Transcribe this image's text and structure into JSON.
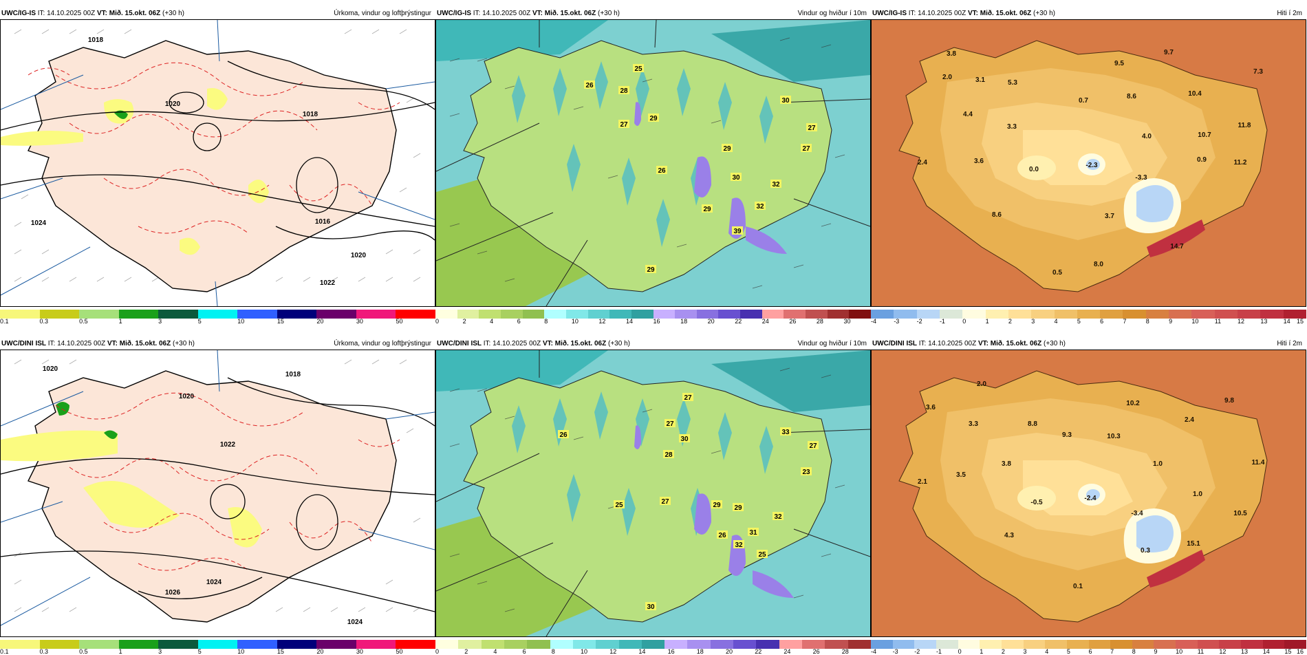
{
  "rows": [
    {
      "model": "UWC/IG-IS",
      "panels": [
        {
          "kind": "precip",
          "model": "UWC/IG-IS",
          "it": "IT: 14.10.2025 00Z",
          "vt_label": "VT:",
          "vt": "Mið. 15.okt. 06Z",
          "lead": "(+30 h)",
          "title": "Úrkoma, vindur og loftþrýstingur",
          "labels": [
            {
              "text": "1024"
            },
            {
              "text": "1020"
            },
            {
              "text": "1018"
            },
            {
              "text": "1016"
            },
            {
              "text": "1020"
            },
            {
              "text": "1022"
            },
            {
              "text": "1018"
            }
          ]
        },
        {
          "kind": "wind",
          "model": "UWC/IG-IS",
          "it": "IT: 14.10.2025 00Z",
          "vt_label": "VT:",
          "vt": "Mið. 15.okt. 06Z",
          "lead": "(+30 h)",
          "title": "Vindur og hviður í 10m",
          "labels": [
            {
              "text": "25"
            },
            {
              "text": "26"
            },
            {
              "text": "28"
            },
            {
              "text": "27"
            },
            {
              "text": "29"
            },
            {
              "text": "30"
            },
            {
              "text": "27"
            },
            {
              "text": "27"
            },
            {
              "text": "29"
            },
            {
              "text": "26"
            },
            {
              "text": "30"
            },
            {
              "text": "32"
            },
            {
              "text": "29"
            },
            {
              "text": "32"
            },
            {
              "text": "39"
            },
            {
              "text": "29"
            }
          ]
        },
        {
          "kind": "temp",
          "model": "UWC/IG-IS",
          "it": "IT: 14.10.2025 00Z",
          "vt_label": "VT:",
          "vt": "Mið. 15.okt. 06Z",
          "lead": "(+30 h)",
          "title": "Hiti í 2m",
          "labels": [
            {
              "text": "3.8"
            },
            {
              "text": "2.0"
            },
            {
              "text": "3.1"
            },
            {
              "text": "5.3"
            },
            {
              "text": "9.5"
            },
            {
              "text": "9.7"
            },
            {
              "text": "7.3"
            },
            {
              "text": "0.7"
            },
            {
              "text": "8.6"
            },
            {
              "text": "10.4"
            },
            {
              "text": "4.4"
            },
            {
              "text": "3.3"
            },
            {
              "text": "4.0"
            },
            {
              "text": "10.7"
            },
            {
              "text": "11.8"
            },
            {
              "text": "2.4"
            },
            {
              "text": "3.6"
            },
            {
              "text": "0.0"
            },
            {
              "text": "-2.3"
            },
            {
              "text": "-3.3"
            },
            {
              "text": "0.9"
            },
            {
              "text": "11.2"
            },
            {
              "text": "8.6"
            },
            {
              "text": "3.7"
            },
            {
              "text": "14.7"
            },
            {
              "text": "0.5"
            },
            {
              "text": "8.0"
            }
          ]
        }
      ]
    },
    {
      "model": "UWC/DINI ISL",
      "panels": [
        {
          "kind": "precip",
          "model": "UWC/DINI ISL",
          "it": "IT: 14.10.2025 00Z",
          "vt_label": "VT:",
          "vt": "Mið. 15.okt. 06Z",
          "lead": "(+30 h)",
          "title": "Úrkoma, vindur og loftþrýstingur",
          "labels": [
            {
              "text": "1020"
            },
            {
              "text": "1018"
            },
            {
              "text": "1020"
            },
            {
              "text": "1022"
            },
            {
              "text": "1024"
            },
            {
              "text": "1026"
            },
            {
              "text": "1024"
            }
          ]
        },
        {
          "kind": "wind",
          "model": "UWC/DINI ISL",
          "it": "IT: 14.10.2025 00Z",
          "vt_label": "VT:",
          "vt": "Mið. 15.okt. 06Z",
          "lead": "(+30 h)",
          "title": "Vindur og hviður í 10m",
          "labels": [
            {
              "text": "27"
            },
            {
              "text": "26"
            },
            {
              "text": "27"
            },
            {
              "text": "30"
            },
            {
              "text": "28"
            },
            {
              "text": "33"
            },
            {
              "text": "27"
            },
            {
              "text": "23"
            },
            {
              "text": "25"
            },
            {
              "text": "27"
            },
            {
              "text": "29"
            },
            {
              "text": "29"
            },
            {
              "text": "32"
            },
            {
              "text": "31"
            },
            {
              "text": "26"
            },
            {
              "text": "32"
            },
            {
              "text": "25"
            },
            {
              "text": "30"
            }
          ]
        },
        {
          "kind": "temp",
          "model": "UWC/DINI ISL",
          "it": "IT: 14.10.2025 00Z",
          "vt_label": "VT:",
          "vt": "Mið. 15.okt. 06Z",
          "lead": "(+30 h)",
          "title": "Hiti í 2m",
          "labels": [
            {
              "text": "2.0"
            },
            {
              "text": "3.6"
            },
            {
              "text": "3.3"
            },
            {
              "text": "10.2"
            },
            {
              "text": "9.8"
            },
            {
              "text": "8.8"
            },
            {
              "text": "9.3"
            },
            {
              "text": "10.3"
            },
            {
              "text": "2.4"
            },
            {
              "text": "3.8"
            },
            {
              "text": "1.0"
            },
            {
              "text": "11.4"
            },
            {
              "text": "3.5"
            },
            {
              "text": "2.1"
            },
            {
              "text": "-0.5"
            },
            {
              "text": "-2.4"
            },
            {
              "text": "-3.4"
            },
            {
              "text": "1.0"
            },
            {
              "text": "10.5"
            },
            {
              "text": "4.3"
            },
            {
              "text": "0.3"
            },
            {
              "text": "15.1"
            },
            {
              "text": "0.1"
            }
          ]
        }
      ]
    }
  ],
  "legends": {
    "precip": {
      "colors": [
        "#f7f77a",
        "#c8cc1a",
        "#a6e07a",
        "#1aa01a",
        "#0b5a3c",
        "#00f2f2",
        "#3060ff",
        "#00007a",
        "#6a006a",
        "#f0187a",
        "#ff0000"
      ],
      "ticks": [
        "0.1",
        "0.3",
        "0.5",
        "1",
        "3",
        "5",
        "10",
        "15",
        "20",
        "30",
        "50"
      ]
    },
    "wind_top": {
      "colors": [
        "#ffffe0",
        "#e0f0a0",
        "#c0e070",
        "#a8d060",
        "#90c050",
        "#b0ffff",
        "#80e8e8",
        "#60d0d0",
        "#40b8b8",
        "#30a0a0",
        "#c8b0ff",
        "#a890f0",
        "#8870e0",
        "#6850d0",
        "#4830b0",
        "#ffa0a0",
        "#e07070",
        "#c05050",
        "#a03030",
        "#801010"
      ],
      "ticks": [
        "0",
        "2",
        "4",
        "6",
        "8",
        "10",
        "12",
        "14",
        "16",
        "18",
        "20",
        "22",
        "24",
        "26",
        "28",
        "30"
      ]
    },
    "wind_bot": {
      "colors": [
        "#ffffe0",
        "#e0f0a0",
        "#c0e070",
        "#a8d060",
        "#90c050",
        "#b0ffff",
        "#80e8e8",
        "#60d0d0",
        "#40b8b8",
        "#30a0a0",
        "#c8b0ff",
        "#a890f0",
        "#8870e0",
        "#6850d0",
        "#4830b0",
        "#ffa0a0",
        "#e07070",
        "#c05050",
        "#a03030"
      ],
      "ticks": [
        "0",
        "2",
        "4",
        "6",
        "8",
        "10",
        "12",
        "14",
        "16",
        "18",
        "20",
        "22",
        "24",
        "26",
        "28"
      ]
    },
    "temp_top": {
      "colors": [
        "#6aa0e0",
        "#90bcee",
        "#b8d6f6",
        "#dce8d8",
        "#fffce0",
        "#fff0b0",
        "#ffe098",
        "#f8d080",
        "#f0c068",
        "#e8b050",
        "#e0a040",
        "#d89030",
        "#d88040",
        "#d87050",
        "#d86058",
        "#d05050",
        "#c84048",
        "#c03040",
        "#b02030"
      ],
      "ticks": [
        "-4",
        "-3",
        "-2",
        "-1",
        "0",
        "1",
        "2",
        "3",
        "4",
        "5",
        "6",
        "7",
        "8",
        "9",
        "10",
        "11",
        "12",
        "13",
        "14",
        "15"
      ]
    },
    "temp_bot": {
      "colors": [
        "#6aa0e0",
        "#90bcee",
        "#b8d6f6",
        "#dce8d8",
        "#fffce0",
        "#fff0b0",
        "#ffe098",
        "#f8d080",
        "#f0c068",
        "#e8b050",
        "#e0a040",
        "#d89030",
        "#d88040",
        "#d87050",
        "#d86058",
        "#d05050",
        "#c84048",
        "#c03040",
        "#b02030",
        "#a01828"
      ],
      "ticks": [
        "-4",
        "-3",
        "-2",
        "-1",
        "0",
        "1",
        "2",
        "3",
        "4",
        "5",
        "6",
        "7",
        "8",
        "9",
        "10",
        "11",
        "12",
        "13",
        "14",
        "15",
        "16"
      ]
    }
  }
}
